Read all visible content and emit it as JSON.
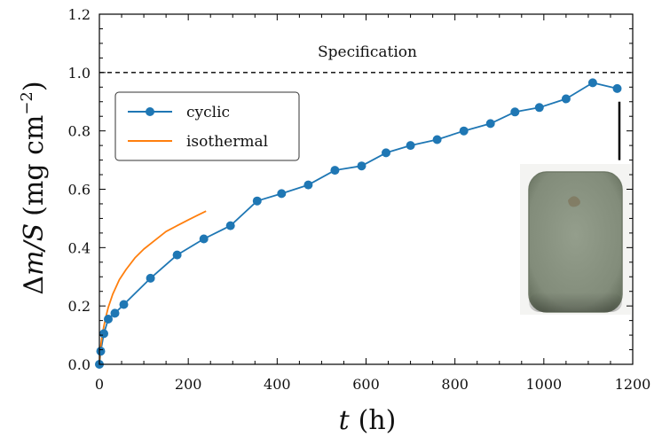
{
  "chart_data": {
    "type": "line",
    "xlabel_var": "t",
    "xlabel_unit": "(h)",
    "ylabel_prefix": "Δ",
    "ylabel_var": "m/S",
    "ylabel_unit": "(mg cm",
    "ylabel_exp": "−2",
    "ylabel_close": ")",
    "xlim": [
      0,
      1200
    ],
    "ylim": [
      0.0,
      1.2
    ],
    "x_ticks": [
      0,
      200,
      400,
      600,
      800,
      1000,
      1200
    ],
    "x_tick_labels": [
      "0",
      "200",
      "400",
      "600",
      "800",
      "1000",
      "1200"
    ],
    "y_ticks": [
      0.0,
      0.2,
      0.4,
      0.6,
      0.8,
      1.0,
      1.2
    ],
    "y_tick_labels": [
      "0.0",
      "0.2",
      "0.4",
      "0.6",
      "0.8",
      "1.0",
      "1.2"
    ],
    "grid": false,
    "legend_position": "upper-left",
    "series": [
      {
        "name": "cyclic",
        "color": "#1f77b4",
        "marker": "circle",
        "x": [
          0,
          3,
          10,
          20,
          35,
          55,
          115,
          175,
          235,
          295,
          355,
          410,
          470,
          530,
          590,
          645,
          700,
          760,
          820,
          880,
          935,
          990,
          1050,
          1110,
          1165
        ],
        "y": [
          0.0,
          0.045,
          0.105,
          0.155,
          0.175,
          0.205,
          0.295,
          0.375,
          0.43,
          0.475,
          0.56,
          0.585,
          0.615,
          0.665,
          0.68,
          0.725,
          0.75,
          0.77,
          0.8,
          0.825,
          0.865,
          0.88,
          0.91,
          0.965,
          0.945
        ]
      },
      {
        "name": "isothermal",
        "color": "#ff7f0e",
        "marker": "none",
        "x": [
          0,
          2,
          5,
          10,
          15,
          20,
          30,
          45,
          60,
          80,
          100,
          125,
          150,
          175,
          200,
          220,
          240
        ],
        "y": [
          0.0,
          0.05,
          0.085,
          0.13,
          0.165,
          0.195,
          0.24,
          0.29,
          0.325,
          0.365,
          0.395,
          0.425,
          0.455,
          0.475,
          0.495,
          0.51,
          0.525
        ]
      }
    ],
    "reference_line": {
      "y": 1.0,
      "style": "dashed",
      "color": "#000000",
      "label": "Specification"
    },
    "vertical_marker": {
      "x": 1170,
      "y_range": [
        0.7,
        0.9
      ],
      "color": "#000000"
    },
    "inset_photo": {
      "icon": "sample-coupon-photo",
      "background": "#f4f4f2",
      "coupon_color": "#8a9482",
      "coupon_edge": "#6e7866"
    }
  }
}
